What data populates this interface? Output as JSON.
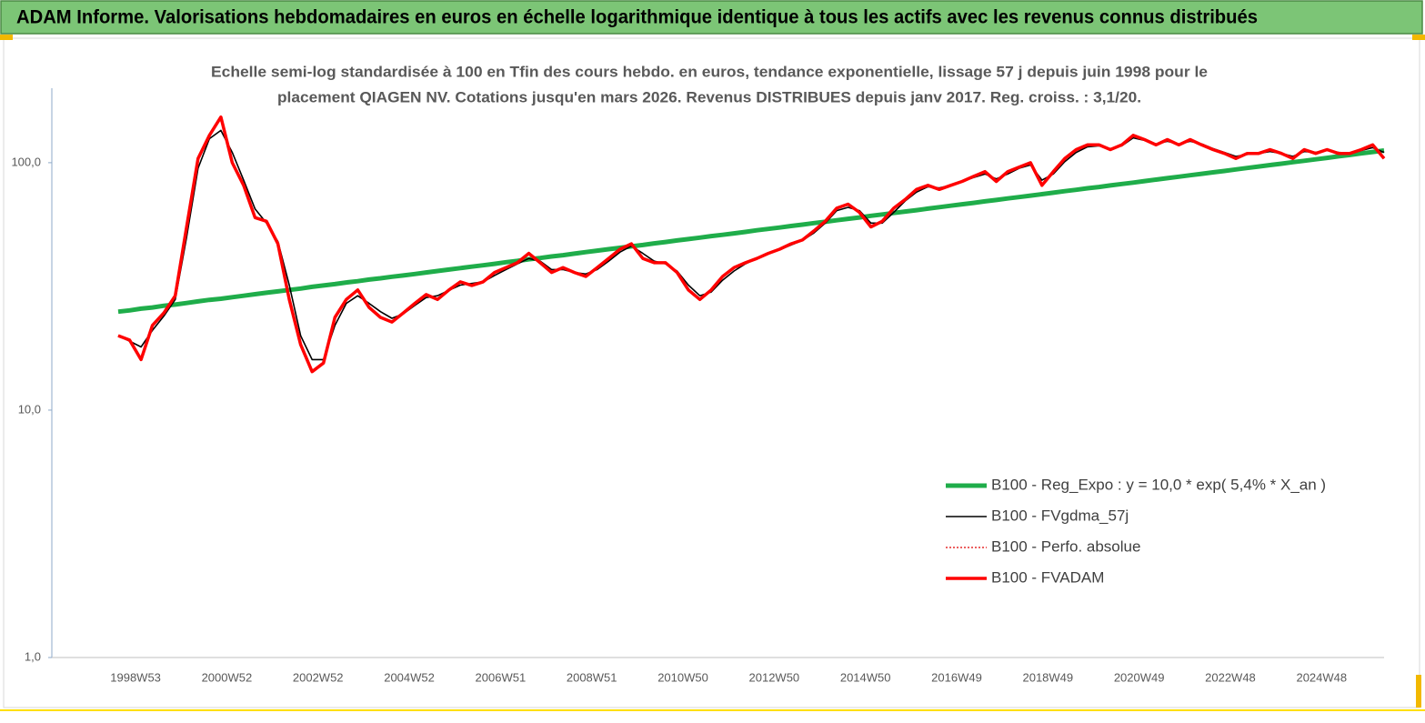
{
  "chart_data": {
    "type": "line",
    "title": "ADAM Informe. Valorisations hebdomadaires en euros en échelle logarithmique identique à tous les actifs avec les revenus connus distribués",
    "subtitle": [
      "Echelle semi-log standardisée à 100 en Tfin des cours hebdo. en euros, tendance exponentielle, lissage 57 j depuis juin 1998 pour le",
      "placement QIAGEN NV. Cotations jusqu'en mars 2026. Revenus DISTRIBUES depuis janv 2017. Reg. croiss. : 3,1/20."
    ],
    "log_scale": true,
    "ylim": [
      1,
      200
    ],
    "yticks": [
      {
        "value": 1,
        "label": "1,0"
      },
      {
        "value": 10,
        "label": "10,0"
      },
      {
        "value": 100,
        "label": "100,0"
      }
    ],
    "legend": "lower-right",
    "categories": [
      null,
      null,
      "1998W53",
      null,
      null,
      null,
      null,
      null,
      null,
      null,
      "2000W52",
      null,
      null,
      null,
      null,
      null,
      null,
      null,
      "2002W52",
      null,
      null,
      null,
      null,
      null,
      null,
      null,
      "2004W52",
      null,
      null,
      null,
      null,
      null,
      null,
      null,
      "2006W51",
      null,
      null,
      null,
      null,
      null,
      null,
      null,
      "2008W51",
      null,
      null,
      null,
      null,
      null,
      null,
      null,
      "2010W50",
      null,
      null,
      null,
      null,
      null,
      null,
      null,
      "2012W50",
      null,
      null,
      null,
      null,
      null,
      null,
      null,
      "2014W50",
      null,
      null,
      null,
      null,
      null,
      null,
      null,
      "2016W49",
      null,
      null,
      null,
      null,
      null,
      null,
      null,
      "2018W49",
      null,
      null,
      null,
      null,
      null,
      null,
      null,
      "2020W49",
      null,
      null,
      null,
      null,
      null,
      null,
      null,
      "2022W48",
      null,
      null,
      null,
      null,
      null,
      null,
      null,
      "2024W48",
      null,
      null,
      null,
      null,
      null
    ],
    "series": [
      {
        "name": "B100 - Reg_Expo : y = 10,0 * exp( 5,4% *  X_an )",
        "color": "#1fad4a",
        "width": 5,
        "dash": "solid",
        "values": [
          25.0,
          25.3,
          25.7,
          26.0,
          26.4,
          26.7,
          27.1,
          27.5,
          27.9,
          28.2,
          28.6,
          29.0,
          29.4,
          29.8,
          30.2,
          30.6,
          31.0,
          31.5,
          31.9,
          32.3,
          32.8,
          33.2,
          33.7,
          34.1,
          34.6,
          35.0,
          35.5,
          36.0,
          36.5,
          37.0,
          37.5,
          38.0,
          38.5,
          39.0,
          39.6,
          40.1,
          40.7,
          41.2,
          41.8,
          42.3,
          42.9,
          43.5,
          44.1,
          44.7,
          45.3,
          45.9,
          46.5,
          47.2,
          47.8,
          48.5,
          49.1,
          49.8,
          50.5,
          51.1,
          51.8,
          52.5,
          53.3,
          54.0,
          54.7,
          55.5,
          56.2,
          57.0,
          57.7,
          58.5,
          59.3,
          60.1,
          61.0,
          61.8,
          62.6,
          63.5,
          64.3,
          65.2,
          66.1,
          67.0,
          67.9,
          68.8,
          69.8,
          70.7,
          71.7,
          72.6,
          73.6,
          74.6,
          75.6,
          76.7,
          77.7,
          78.8,
          79.8,
          80.9,
          82.0,
          83.1,
          84.3,
          85.4,
          86.6,
          87.8,
          89.0,
          90.2,
          91.4,
          92.6,
          93.9,
          95.2,
          96.5,
          97.8,
          99.1,
          100.5,
          101.8,
          103.2,
          104.6,
          106.1,
          107.5,
          109.0,
          110.5,
          112.0
        ]
      },
      {
        "name": "B100 - FVgdma_57j",
        "color": "#000000",
        "width": 1.6,
        "dash": "solid",
        "values": [
          20,
          19,
          18,
          21,
          24,
          28,
          50,
          95,
          125,
          135,
          110,
          85,
          65,
          57,
          48,
          32,
          20,
          16,
          16,
          22,
          27,
          29,
          27,
          25,
          23.5,
          24.5,
          26.5,
          28.5,
          29,
          30.5,
          32,
          32.5,
          33,
          35,
          37,
          39,
          41,
          40,
          37,
          37,
          36,
          35.5,
          37,
          40,
          43.5,
          46,
          43,
          40,
          39,
          36.5,
          32,
          29,
          30,
          33.5,
          36.5,
          39,
          41,
          43,
          44.5,
          46.5,
          48.5,
          52,
          57,
          64,
          66,
          64,
          57,
          57,
          63,
          70,
          76,
          80,
          79,
          81,
          84,
          87,
          90,
          86,
          90,
          95,
          98,
          85,
          90,
          101,
          110,
          116,
          117,
          114,
          117,
          126,
          123,
          119,
          122,
          119,
          122,
          119,
          114,
          110,
          106,
          108,
          109,
          111,
          109,
          106,
          111,
          110,
          112,
          110,
          109,
          112,
          115,
          110
        ]
      },
      {
        "name": "B100 - Perfo. absolue",
        "color": "#e00000",
        "width": 1.2,
        "dash": "dotted",
        "values": [
          20,
          19.2,
          16,
          22,
          24.7,
          29,
          55,
          104,
          129,
          153,
          100,
          81,
          60,
          58,
          47,
          28,
          18.4,
          14.3,
          15.5,
          23.7,
          28,
          30.6,
          26,
          23.7,
          22.7,
          24.7,
          27,
          29.3,
          28,
          30.6,
          33,
          31.9,
          33,
          36,
          37.7,
          39.4,
          43,
          39.4,
          36,
          37.7,
          36,
          34.7,
          37.7,
          41,
          44.7,
          47,
          41,
          39.4,
          39.4,
          36,
          30.6,
          28,
          30.6,
          34.7,
          37.7,
          39.4,
          41,
          43,
          44.7,
          47,
          48.7,
          53,
          58,
          65.5,
          68,
          63,
          55,
          58,
          65.5,
          71,
          78,
          81,
          78,
          81,
          84,
          88,
          92,
          84,
          92,
          96,
          100,
          81,
          92,
          104,
          113,
          118,
          118,
          113,
          118,
          129,
          124,
          118,
          124,
          118,
          124,
          118,
          113,
          109,
          104,
          109,
          109,
          113,
          109,
          104,
          113,
          109,
          113,
          109,
          109,
          113,
          118,
          104
        ]
      },
      {
        "name": "B100 - FVADAM",
        "color": "#ff0000",
        "width": 3.5,
        "dash": "solid",
        "values": [
          20,
          19.2,
          16,
          22,
          24.7,
          29,
          55,
          104,
          129,
          153,
          100,
          81,
          60,
          58,
          47,
          28,
          18.4,
          14.3,
          15.5,
          23.7,
          28,
          30.6,
          26,
          23.7,
          22.7,
          24.7,
          27,
          29.3,
          28,
          30.6,
          33,
          31.9,
          33,
          36,
          37.7,
          39.4,
          43,
          39.4,
          36,
          37.7,
          36,
          34.7,
          37.7,
          41,
          44.7,
          47,
          41,
          39.4,
          39.4,
          36,
          30.6,
          28,
          30.6,
          34.7,
          37.7,
          39.4,
          41,
          43,
          44.7,
          47,
          48.7,
          53,
          58,
          65.5,
          68,
          63,
          55,
          58,
          65.5,
          71,
          78,
          81,
          78,
          81,
          84,
          88,
          92,
          84,
          92,
          96,
          100,
          81,
          92,
          104,
          113,
          118,
          118,
          113,
          118,
          129,
          124,
          118,
          124,
          118,
          124,
          118,
          113,
          109,
          104,
          109,
          109,
          113,
          109,
          104,
          113,
          109,
          113,
          109,
          109,
          113,
          118,
          104
        ]
      }
    ]
  }
}
